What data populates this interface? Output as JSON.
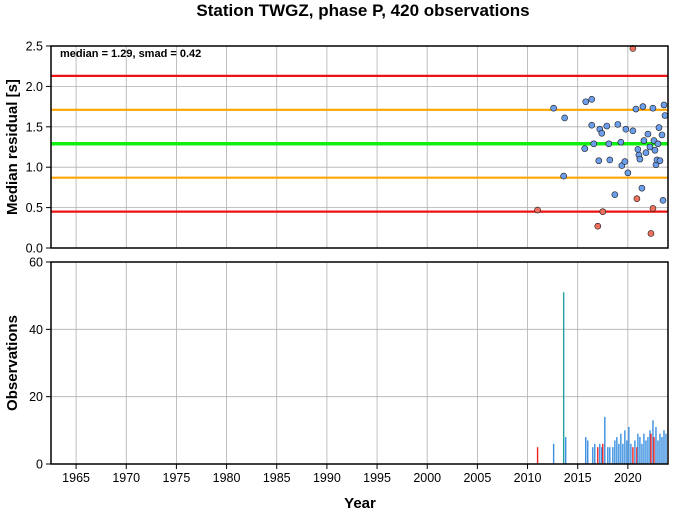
{
  "chart_data": [
    {
      "type": "scatter",
      "title": "Station TWGZ, phase P, 420 observations",
      "annotation": "median = 1.29, smad = 0.42",
      "xlabel": "",
      "ylabel": "Median residual [s]",
      "xlim": [
        1962.5,
        2024
      ],
      "ylim": [
        0,
        2.5
      ],
      "yticks": [
        "0.0",
        "0.5",
        "1.0",
        "1.5",
        "2.0",
        "2.5"
      ],
      "grid": true,
      "reference_lines": [
        {
          "value": 2.13,
          "color": "#ee1111"
        },
        {
          "value": 1.71,
          "color": "#ffa500"
        },
        {
          "value": 1.29,
          "color": "#11ee11"
        },
        {
          "value": 0.87,
          "color": "#ffa500"
        },
        {
          "value": 0.45,
          "color": "#ee1111"
        }
      ],
      "colors": {
        "inlier": "#6d9eeb",
        "outlier": "#f07060"
      },
      "points": [
        {
          "x": 2011.0,
          "y": 0.47,
          "outlier": true
        },
        {
          "x": 2012.6,
          "y": 1.73,
          "outlier": false
        },
        {
          "x": 2013.7,
          "y": 1.61,
          "outlier": false
        },
        {
          "x": 2013.6,
          "y": 0.89,
          "outlier": false
        },
        {
          "x": 2015.7,
          "y": 1.23,
          "outlier": false
        },
        {
          "x": 2015.8,
          "y": 1.81,
          "outlier": false
        },
        {
          "x": 2016.4,
          "y": 1.84,
          "outlier": false
        },
        {
          "x": 2016.4,
          "y": 1.52,
          "outlier": false
        },
        {
          "x": 2016.6,
          "y": 1.29,
          "outlier": false
        },
        {
          "x": 2017.1,
          "y": 1.08,
          "outlier": false
        },
        {
          "x": 2017.2,
          "y": 1.47,
          "outlier": false
        },
        {
          "x": 2017.4,
          "y": 1.42,
          "outlier": false
        },
        {
          "x": 2017.0,
          "y": 0.27,
          "outlier": true
        },
        {
          "x": 2017.5,
          "y": 0.45,
          "outlier": true
        },
        {
          "x": 2017.9,
          "y": 1.51,
          "outlier": false
        },
        {
          "x": 2018.1,
          "y": 1.29,
          "outlier": false
        },
        {
          "x": 2018.2,
          "y": 1.09,
          "outlier": false
        },
        {
          "x": 2018.7,
          "y": 0.66,
          "outlier": false
        },
        {
          "x": 2019.0,
          "y": 1.53,
          "outlier": false
        },
        {
          "x": 2019.3,
          "y": 1.31,
          "outlier": false
        },
        {
          "x": 2019.4,
          "y": 1.02,
          "outlier": false
        },
        {
          "x": 2019.7,
          "y": 1.07,
          "outlier": false
        },
        {
          "x": 2019.8,
          "y": 1.47,
          "outlier": false
        },
        {
          "x": 2020.0,
          "y": 0.93,
          "outlier": false
        },
        {
          "x": 2020.5,
          "y": 1.45,
          "outlier": false
        },
        {
          "x": 2020.5,
          "y": 2.47,
          "outlier": true
        },
        {
          "x": 2020.8,
          "y": 1.72,
          "outlier": false
        },
        {
          "x": 2020.9,
          "y": 0.61,
          "outlier": true
        },
        {
          "x": 2021.0,
          "y": 1.22,
          "outlier": false
        },
        {
          "x": 2021.1,
          "y": 1.15,
          "outlier": false
        },
        {
          "x": 2021.2,
          "y": 1.1,
          "outlier": false
        },
        {
          "x": 2021.4,
          "y": 0.74,
          "outlier": false
        },
        {
          "x": 2021.5,
          "y": 1.75,
          "outlier": false
        },
        {
          "x": 2021.6,
          "y": 1.33,
          "outlier": false
        },
        {
          "x": 2021.8,
          "y": 1.18,
          "outlier": false
        },
        {
          "x": 2022.0,
          "y": 1.41,
          "outlier": false
        },
        {
          "x": 2022.2,
          "y": 1.25,
          "outlier": false
        },
        {
          "x": 2022.3,
          "y": 0.18,
          "outlier": true
        },
        {
          "x": 2022.5,
          "y": 1.73,
          "outlier": false
        },
        {
          "x": 2022.5,
          "y": 0.49,
          "outlier": true
        },
        {
          "x": 2022.6,
          "y": 1.33,
          "outlier": false
        },
        {
          "x": 2022.7,
          "y": 1.21,
          "outlier": false
        },
        {
          "x": 2022.8,
          "y": 1.03,
          "outlier": false
        },
        {
          "x": 2022.9,
          "y": 1.09,
          "outlier": false
        },
        {
          "x": 2023.0,
          "y": 1.29,
          "outlier": false
        },
        {
          "x": 2023.1,
          "y": 1.49,
          "outlier": false
        },
        {
          "x": 2023.2,
          "y": 1.08,
          "outlier": false
        },
        {
          "x": 2023.4,
          "y": 1.4,
          "outlier": false
        },
        {
          "x": 2023.6,
          "y": 1.77,
          "outlier": false
        },
        {
          "x": 2023.7,
          "y": 1.64,
          "outlier": false
        },
        {
          "x": 2023.5,
          "y": 0.59,
          "outlier": false
        }
      ]
    },
    {
      "type": "bar",
      "xlabel": "Year",
      "ylabel": "Observations",
      "xlim": [
        1962.5,
        2024
      ],
      "ylim": [
        0,
        60
      ],
      "xticks": [
        "1965",
        "1970",
        "1975",
        "1980",
        "1985",
        "1990",
        "1995",
        "2000",
        "2005",
        "2010",
        "2015",
        "2020"
      ],
      "yticks": [
        "0",
        "20",
        "40",
        "60"
      ],
      "grid": true,
      "colors": {
        "inlier": "#3a8fe0",
        "outlier": "#ee2222",
        "tall": "#20a0a0"
      },
      "bars": [
        {
          "x": 2011.0,
          "y": 5,
          "outlier": true
        },
        {
          "x": 2012.6,
          "y": 6,
          "outlier": false
        },
        {
          "x": 2013.6,
          "y": 51,
          "outlier": false,
          "tall": true
        },
        {
          "x": 2013.8,
          "y": 8,
          "outlier": false
        },
        {
          "x": 2015.8,
          "y": 8,
          "outlier": false
        },
        {
          "x": 2016.0,
          "y": 7,
          "outlier": false
        },
        {
          "x": 2016.5,
          "y": 5,
          "outlier": false
        },
        {
          "x": 2016.7,
          "y": 6,
          "outlier": false
        },
        {
          "x": 2017.0,
          "y": 5,
          "outlier": true
        },
        {
          "x": 2017.2,
          "y": 6,
          "outlier": false
        },
        {
          "x": 2017.4,
          "y": 5,
          "outlier": false
        },
        {
          "x": 2017.5,
          "y": 6,
          "outlier": true
        },
        {
          "x": 2017.7,
          "y": 14,
          "outlier": false
        },
        {
          "x": 2018.0,
          "y": 5,
          "outlier": false
        },
        {
          "x": 2018.2,
          "y": 5,
          "outlier": false
        },
        {
          "x": 2018.5,
          "y": 5,
          "outlier": false
        },
        {
          "x": 2018.7,
          "y": 7,
          "outlier": false
        },
        {
          "x": 2018.9,
          "y": 8,
          "outlier": false
        },
        {
          "x": 2019.1,
          "y": 6,
          "outlier": false
        },
        {
          "x": 2019.3,
          "y": 9,
          "outlier": false
        },
        {
          "x": 2019.5,
          "y": 6,
          "outlier": false
        },
        {
          "x": 2019.7,
          "y": 10,
          "outlier": false
        },
        {
          "x": 2019.9,
          "y": 7,
          "outlier": false
        },
        {
          "x": 2020.1,
          "y": 11,
          "outlier": false
        },
        {
          "x": 2020.3,
          "y": 6,
          "outlier": false
        },
        {
          "x": 2020.5,
          "y": 5,
          "outlier": true
        },
        {
          "x": 2020.7,
          "y": 7,
          "outlier": false
        },
        {
          "x": 2020.9,
          "y": 5,
          "outlier": true
        },
        {
          "x": 2021.0,
          "y": 9,
          "outlier": false
        },
        {
          "x": 2021.2,
          "y": 8,
          "outlier": false
        },
        {
          "x": 2021.4,
          "y": 6,
          "outlier": false
        },
        {
          "x": 2021.6,
          "y": 9,
          "outlier": false
        },
        {
          "x": 2021.8,
          "y": 7,
          "outlier": false
        },
        {
          "x": 2022.0,
          "y": 8,
          "outlier": false
        },
        {
          "x": 2022.2,
          "y": 10,
          "outlier": false
        },
        {
          "x": 2022.3,
          "y": 9,
          "outlier": true
        },
        {
          "x": 2022.5,
          "y": 13,
          "outlier": false
        },
        {
          "x": 2022.6,
          "y": 8,
          "outlier": true
        },
        {
          "x": 2022.8,
          "y": 11,
          "outlier": false
        },
        {
          "x": 2023.0,
          "y": 7,
          "outlier": false
        },
        {
          "x": 2023.2,
          "y": 9,
          "outlier": false
        },
        {
          "x": 2023.4,
          "y": 8,
          "outlier": false
        },
        {
          "x": 2023.6,
          "y": 10,
          "outlier": false
        },
        {
          "x": 2023.8,
          "y": 9,
          "outlier": false
        }
      ]
    }
  ]
}
